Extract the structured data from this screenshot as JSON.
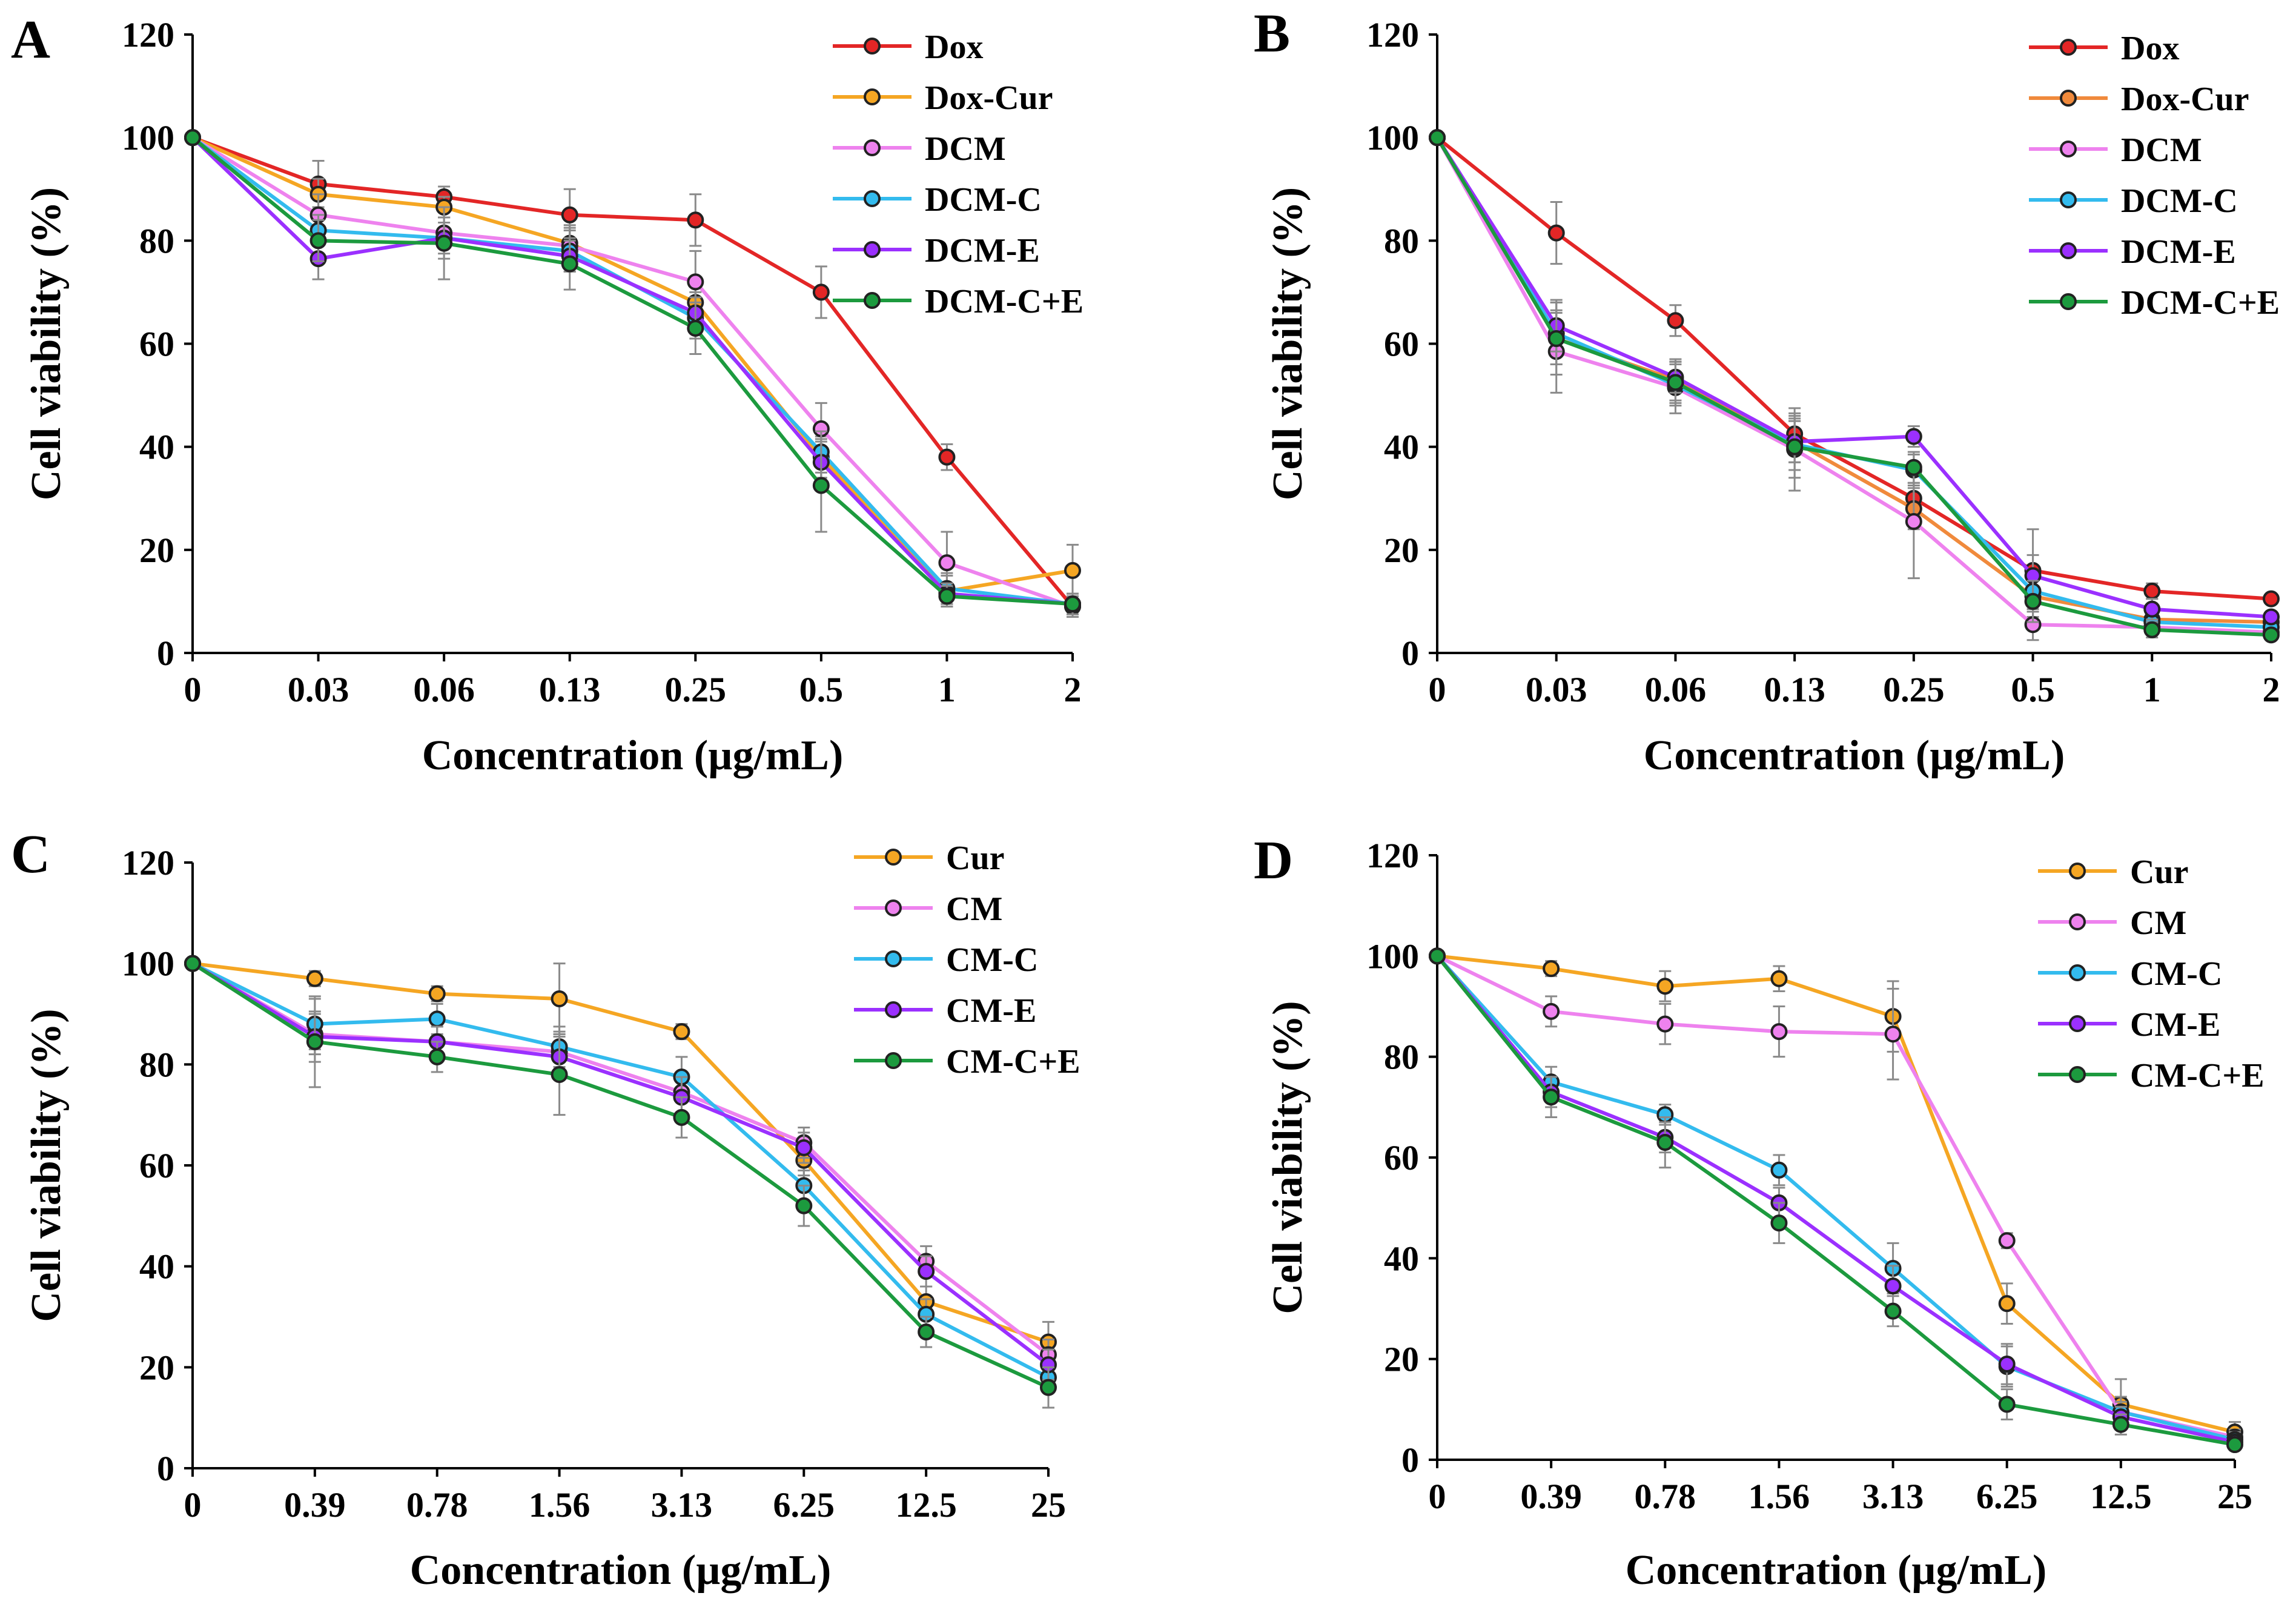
{
  "chart_data": [
    {
      "panel": "A",
      "type": "line",
      "title": "",
      "xlabel": "Concentration (µg/mL)",
      "ylabel": "Cell viability (%)",
      "ylim": [
        0,
        120
      ],
      "yticks": [
        "0",
        "20",
        "40",
        "60",
        "80",
        "100",
        "120"
      ],
      "categories": [
        "0",
        "0.03",
        "0.06",
        "0.13",
        "0.25",
        "0.5",
        "1",
        "2"
      ],
      "legend_position": "top-right",
      "series": [
        {
          "name": "Dox",
          "color": "#e32626",
          "values": [
            100,
            91,
            88.5,
            85,
            84,
            70,
            38,
            9
          ],
          "errors": [
            0,
            4.5,
            2,
            5,
            5,
            5,
            2.5,
            2
          ]
        },
        {
          "name": "Dox-Cur",
          "color": "#f5a623",
          "values": [
            100,
            89,
            86.5,
            79.5,
            68,
            38,
            12,
            16
          ],
          "errors": [
            0,
            3,
            2,
            3,
            4,
            4,
            3,
            5
          ]
        },
        {
          "name": "DCM",
          "color": "#ee82ee",
          "values": [
            100,
            85,
            81.5,
            79,
            72,
            43.5,
            17.5,
            9
          ],
          "errors": [
            0,
            4,
            3,
            4,
            6,
            5,
            6,
            2
          ]
        },
        {
          "name": "DCM-C",
          "color": "#33bbee",
          "values": [
            100,
            82,
            80.5,
            78,
            65,
            39,
            12.5,
            9.5
          ],
          "errors": [
            0,
            3,
            4,
            4,
            4,
            4,
            3,
            2
          ]
        },
        {
          "name": "DCM-E",
          "color": "#9b30ff",
          "values": [
            100,
            76.5,
            80.5,
            77,
            66,
            37,
            11.5,
            9.5
          ],
          "errors": [
            0,
            4,
            3,
            3,
            4,
            4,
            2,
            2
          ]
        },
        {
          "name": "DCM-C+E",
          "color": "#1c9a3e",
          "values": [
            100,
            80,
            79.5,
            75.5,
            63,
            32.5,
            11,
            9.5
          ],
          "errors": [
            0,
            4,
            7,
            5,
            5,
            9,
            2,
            2
          ]
        }
      ]
    },
    {
      "panel": "B",
      "type": "line",
      "title": "",
      "xlabel": "Concentration (µg/mL)",
      "ylabel": "Cell viability (%)",
      "ylim": [
        0,
        120
      ],
      "yticks": [
        "0",
        "20",
        "40",
        "60",
        "80",
        "100",
        "120"
      ],
      "categories": [
        "0",
        "0.03",
        "0.06",
        "0.13",
        "0.25",
        "0.5",
        "1",
        "2"
      ],
      "legend_position": "top-right",
      "series": [
        {
          "name": "Dox",
          "color": "#e32626",
          "values": [
            100,
            81.5,
            64.5,
            42.5,
            30,
            16,
            12,
            10.5
          ],
          "errors": [
            0,
            6,
            3,
            4,
            3,
            3,
            1.5,
            1
          ]
        },
        {
          "name": "Dox-Cur",
          "color": "#f08a3c",
          "values": [
            100,
            61,
            53,
            41,
            28,
            11,
            6.5,
            6
          ],
          "errors": [
            0,
            5,
            4,
            4,
            4,
            4,
            2,
            1
          ]
        },
        {
          "name": "DCM",
          "color": "#ee82ee",
          "values": [
            100,
            58.5,
            51.5,
            39.5,
            25.5,
            5.5,
            5,
            4
          ],
          "errors": [
            0,
            8,
            5,
            8,
            11,
            3,
            1.5,
            1
          ]
        },
        {
          "name": "DCM-C",
          "color": "#33bbee",
          "values": [
            100,
            62,
            52,
            40.5,
            35.5,
            12,
            6,
            5
          ],
          "errors": [
            0,
            6,
            4,
            5,
            3,
            4,
            1.5,
            1
          ]
        },
        {
          "name": "DCM-E",
          "color": "#9b30ff",
          "values": [
            100,
            63.5,
            53.5,
            41,
            42,
            15,
            8.5,
            7
          ],
          "errors": [
            0,
            5,
            3,
            4,
            2,
            9,
            2,
            1
          ]
        },
        {
          "name": "DCM-C+E",
          "color": "#1c9a3e",
          "values": [
            100,
            61,
            52.5,
            40,
            36,
            10,
            4.5,
            3.5
          ],
          "errors": [
            0,
            7,
            4,
            6,
            3,
            4,
            1.5,
            1
          ]
        }
      ]
    },
    {
      "panel": "C",
      "type": "line",
      "title": "",
      "xlabel": "Concentration (µg/mL)",
      "ylabel": "Cell viability (%)",
      "ylim": [
        0,
        120
      ],
      "yticks": [
        "0",
        "20",
        "40",
        "60",
        "80",
        "100",
        "120"
      ],
      "categories": [
        "0",
        "0.39",
        "0.78",
        "1.56",
        "3.13",
        "6.25",
        "12.5",
        "25"
      ],
      "legend_position": "top-right",
      "series": [
        {
          "name": "Cur",
          "color": "#f5a623",
          "values": [
            100,
            97,
            94,
            93,
            86.5,
            61,
            33,
            25
          ],
          "errors": [
            0,
            1.5,
            1.5,
            7,
            1.5,
            3,
            3,
            4
          ]
        },
        {
          "name": "CM",
          "color": "#ee82ee",
          "values": [
            100,
            86,
            84.5,
            82.5,
            74.5,
            64.5,
            41,
            22.5
          ],
          "errors": [
            0,
            4,
            3,
            4,
            4,
            3,
            3,
            3
          ]
        },
        {
          "name": "CM-C",
          "color": "#33bbee",
          "values": [
            100,
            88,
            89,
            83.5,
            77.5,
            56,
            30.5,
            18
          ],
          "errors": [
            0,
            5,
            3,
            4,
            4,
            3,
            3,
            3
          ]
        },
        {
          "name": "CM-E",
          "color": "#9b30ff",
          "values": [
            100,
            85.5,
            84.5,
            81.5,
            73.5,
            63.5,
            39,
            20.5
          ],
          "errors": [
            0,
            5,
            3,
            4,
            4,
            3,
            3,
            3
          ]
        },
        {
          "name": "CM-C+E",
          "color": "#1c9a3e",
          "values": [
            100,
            84.5,
            81.5,
            78,
            69.5,
            52,
            27,
            16
          ],
          "errors": [
            0,
            9,
            3,
            8,
            4,
            4,
            3,
            4
          ]
        }
      ]
    },
    {
      "panel": "D",
      "type": "line",
      "title": "",
      "xlabel": "Concentration (µg/mL)",
      "ylabel": "Cell viability (%)",
      "ylim": [
        0,
        120
      ],
      "yticks": [
        "0",
        "20",
        "40",
        "60",
        "80",
        "100",
        "120"
      ],
      "categories": [
        "0",
        "0.39",
        "0.78",
        "1.56",
        "3.13",
        "6.25",
        "12.5",
        "25"
      ],
      "legend_position": "top-right",
      "series": [
        {
          "name": "Cur",
          "color": "#f5a623",
          "values": [
            100,
            97.5,
            94,
            95.5,
            88,
            31,
            11,
            5.5
          ],
          "errors": [
            0,
            1.5,
            3,
            2.5,
            7,
            4,
            5,
            2
          ]
        },
        {
          "name": "CM",
          "color": "#ee82ee",
          "values": [
            100,
            89,
            86.5,
            85,
            84.5,
            43.5,
            9.5,
            4.5
          ],
          "errors": [
            0,
            3,
            4,
            5,
            9,
            1.5,
            3,
            1.5
          ]
        },
        {
          "name": "CM-C",
          "color": "#33bbee",
          "values": [
            100,
            75,
            68.5,
            57.5,
            38,
            18.5,
            9.5,
            4
          ],
          "errors": [
            0,
            3,
            2,
            3,
            5,
            4,
            2,
            1.5
          ]
        },
        {
          "name": "CM-E",
          "color": "#9b30ff",
          "values": [
            100,
            73,
            64,
            51,
            34.5,
            19,
            8.5,
            3.5
          ],
          "errors": [
            0,
            3,
            3,
            3,
            4,
            4,
            2,
            1
          ]
        },
        {
          "name": "CM-C+E",
          "color": "#1c9a3e",
          "values": [
            100,
            72,
            63,
            47,
            29.5,
            11,
            7,
            3
          ],
          "errors": [
            0,
            4,
            5,
            4,
            3,
            3,
            2,
            1
          ]
        }
      ]
    }
  ]
}
